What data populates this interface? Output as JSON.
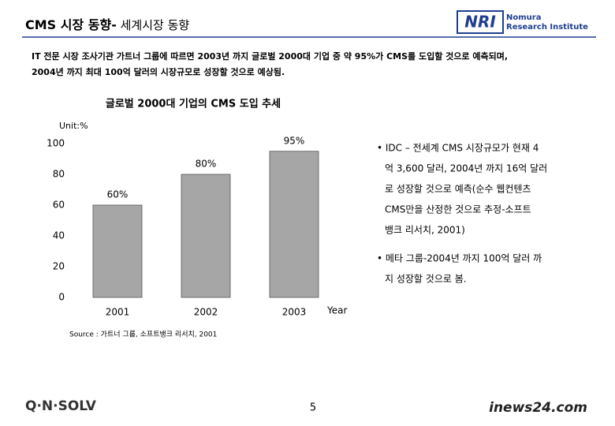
{
  "header": {
    "title_bold": "CMS 시장 동향-",
    "title_rest": " 세계시장 동향",
    "logo_mark": "NRI",
    "logo_lines": [
      "Nomura",
      "Research Institute"
    ]
  },
  "intro": [
    "IT 전문 시장 조사기관 가트너 그룹에 따르면 2003년 까지 글로벌 2000대 기업 중 약 95%가 CMS를 도입할 것으로 예측되며,",
    "2004년 까지 최대 100억 달러의 시장규모로 성장할 것으로 예상됨."
  ],
  "chart_data": {
    "type": "bar",
    "title": "글로벌 2000대 기업의 CMS 도입 추세",
    "unit": "Unit:%",
    "x_label": "Year",
    "categories": [
      "2001",
      "2002",
      "2003"
    ],
    "values": [
      60,
      80,
      95
    ],
    "value_labels": [
      "60%",
      "80%",
      "95%"
    ],
    "color": "#a6a6a6",
    "ylim": [
      0,
      100
    ],
    "yticks": [
      0,
      20,
      40,
      60,
      80,
      100
    ],
    "grid": false
  },
  "bullets": [
    [
      "• IDC – 전세계 CMS 시장규모가 현재 4",
      "억 3,600 달러, 2004년 까지 16억 달러",
      "로 성장할 것으로 예측(순수 웹컨텐츠",
      "CMS만을 산정한 것으로 추정-소프트",
      "뱅크 리서치, 2001)"
    ],
    [
      "• 메타 그룹-2004년 까지 100억 달러 까",
      "지 성장할 것으로 봄."
    ]
  ],
  "source": "Source : 가트너 그룹, 소프트뱅크 리서치, 2001",
  "footer": {
    "logo_left": "Q·N·SOLV",
    "page": "5",
    "logo_right": "inews24.com"
  }
}
